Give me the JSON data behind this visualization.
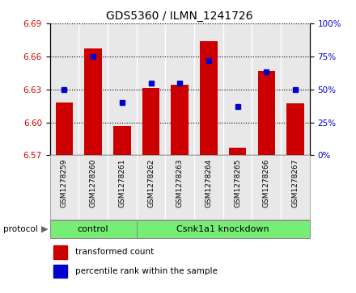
{
  "title": "GDS5360 / ILMN_1241726",
  "samples": [
    "GSM1278259",
    "GSM1278260",
    "GSM1278261",
    "GSM1278262",
    "GSM1278263",
    "GSM1278264",
    "GSM1278265",
    "GSM1278266",
    "GSM1278267"
  ],
  "bar_values": [
    6.618,
    6.667,
    6.597,
    6.631,
    6.634,
    6.674,
    6.577,
    6.647,
    6.617
  ],
  "percentile_values": [
    50,
    75,
    40,
    55,
    55,
    72,
    37,
    63,
    50
  ],
  "ylim": [
    6.57,
    6.69
  ],
  "y_ticks": [
    6.57,
    6.6,
    6.63,
    6.66,
    6.69
  ],
  "right_ylim": [
    0,
    100
  ],
  "right_yticks": [
    0,
    25,
    50,
    75,
    100
  ],
  "bar_color": "#cc0000",
  "dot_color": "#0000cc",
  "plot_bg_color": "#e8e8e8",
  "tick_label_color_left": "#cc0000",
  "tick_label_color_right": "#0000cc",
  "legend_items": [
    {
      "label": "transformed count",
      "color": "#cc0000"
    },
    {
      "label": "percentile rank within the sample",
      "color": "#0000cc"
    }
  ],
  "green_color": "#76ee76",
  "border_color": "#888888"
}
